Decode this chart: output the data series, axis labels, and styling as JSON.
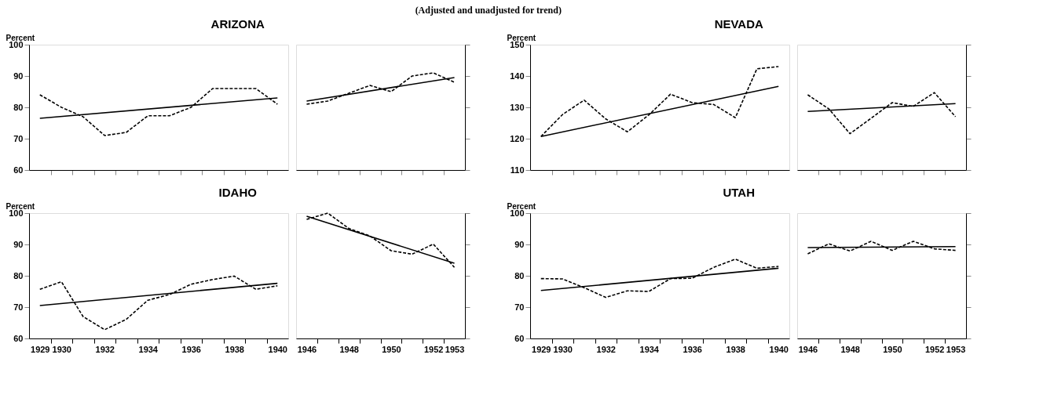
{
  "chart_data": [
    {
      "type": "line",
      "title": "ARIZONA",
      "ylabel": "Percent",
      "annotations": [
        "(Adjusted and unadjusted for trend)"
      ],
      "x": [
        1929,
        1930,
        1931,
        1932,
        1933,
        1934,
        1935,
        1936,
        1937,
        1938,
        1939,
        1940
      ],
      "xlim": [
        1928.5,
        1940.5
      ],
      "xticks": [
        {
          "value": 1929.5,
          "label": null
        },
        {
          "value": 1930.5,
          "label": null
        },
        {
          "value": 1931.5,
          "label": null
        },
        {
          "value": 1932.5,
          "label": null
        },
        {
          "value": 1933.5,
          "label": null
        },
        {
          "value": 1934.5,
          "label": null
        },
        {
          "value": 1935.5,
          "label": null
        },
        {
          "value": 1936.5,
          "label": null
        },
        {
          "value": 1937.5,
          "label": null
        },
        {
          "value": 1938.5,
          "label": null
        },
        {
          "value": 1939.5,
          "label": null
        }
      ],
      "ylim": [
        60,
        100
      ],
      "yticks": [
        60,
        70,
        80,
        90,
        100
      ],
      "tick_labels": "y",
      "series": [
        {
          "color": "#000000",
          "line_style": "dashed",
          "values": [
            84,
            80,
            77,
            71,
            72,
            77.3,
            77.3,
            80,
            86,
            86,
            86,
            81
          ]
        },
        {
          "color": "#000000",
          "line_style": "solid",
          "x": [
            1929,
            1940
          ],
          "values": [
            76.5,
            83
          ]
        }
      ]
    },
    {
      "type": "line",
      "x": [
        1946,
        1947,
        1948,
        1949,
        1950,
        1951,
        1952,
        1953
      ],
      "xlim": [
        1945.5,
        1953.5
      ],
      "xticks": [
        {
          "value": 1946.5,
          "label": null
        },
        {
          "value": 1947.5,
          "label": null
        },
        {
          "value": 1948.5,
          "label": null
        },
        {
          "value": 1949.5,
          "label": null
        },
        {
          "value": 1950.5,
          "label": null
        },
        {
          "value": 1951.5,
          "label": null
        },
        {
          "value": 1952.5,
          "label": null
        }
      ],
      "y2lim": [
        60,
        100
      ],
      "y2ticks": [
        60,
        70,
        80,
        90,
        100
      ],
      "tick_labels": false,
      "series": [
        {
          "color": "#000000",
          "line_style": "dashed",
          "axis": "y2",
          "values": [
            81,
            82,
            84.5,
            87,
            85,
            90,
            91,
            88
          ]
        },
        {
          "color": "#000000",
          "line_style": "solid",
          "axis": "y2",
          "x": [
            1946,
            1953
          ],
          "values": [
            82,
            89.5
          ]
        }
      ]
    },
    {
      "type": "line",
      "title": "NEVADA",
      "ylabel": "Percent",
      "x": [
        1929,
        1930,
        1931,
        1932,
        1933,
        1934,
        1935,
        1936,
        1937,
        1938,
        1939,
        1940
      ],
      "xlim": [
        1928.5,
        1940.5
      ],
      "xticks": [
        {
          "value": 1929.5,
          "label": null
        },
        {
          "value": 1930.5,
          "label": null
        },
        {
          "value": 1931.5,
          "label": null
        },
        {
          "value": 1932.5,
          "label": null
        },
        {
          "value": 1933.5,
          "label": null
        },
        {
          "value": 1934.5,
          "label": null
        },
        {
          "value": 1935.5,
          "label": null
        },
        {
          "value": 1936.5,
          "label": null
        },
        {
          "value": 1937.5,
          "label": null
        },
        {
          "value": 1938.5,
          "label": null
        },
        {
          "value": 1939.5,
          "label": null
        }
      ],
      "ylim": [
        110,
        150
      ],
      "yticks": [
        110,
        120,
        130,
        140,
        150
      ],
      "tick_labels": "y",
      "series": [
        {
          "color": "#000000",
          "line_style": "dashed",
          "values": [
            120.7,
            127.7,
            132.3,
            126.3,
            122.2,
            127.6,
            134.2,
            131.5,
            130.9,
            126.7,
            142.3,
            143
          ]
        },
        {
          "color": "#000000",
          "line_style": "solid",
          "x": [
            1929,
            1940
          ],
          "values": [
            120.7,
            136.7
          ]
        }
      ]
    },
    {
      "type": "line",
      "x": [
        1946,
        1947,
        1948,
        1949,
        1950,
        1951,
        1952,
        1953
      ],
      "xlim": [
        1945.5,
        1953.5
      ],
      "xticks": [
        {
          "value": 1946.5,
          "label": null
        },
        {
          "value": 1947.5,
          "label": null
        },
        {
          "value": 1948.5,
          "label": null
        },
        {
          "value": 1949.5,
          "label": null
        },
        {
          "value": 1950.5,
          "label": null
        },
        {
          "value": 1951.5,
          "label": null
        },
        {
          "value": 1952.5,
          "label": null
        }
      ],
      "y2lim": [
        110,
        150
      ],
      "y2ticks": [
        110,
        120,
        130,
        140,
        150
      ],
      "tick_labels": false,
      "series": [
        {
          "color": "#000000",
          "line_style": "dashed",
          "axis": "y2",
          "values": [
            134,
            129.5,
            121.6,
            126.5,
            131.5,
            130.3,
            134.7,
            127
          ]
        },
        {
          "color": "#000000",
          "line_style": "solid",
          "axis": "y2",
          "x": [
            1946,
            1953
          ],
          "values": [
            128.7,
            131.2
          ]
        }
      ]
    },
    {
      "type": "line",
      "title": "IDAHO",
      "ylabel": "Percent",
      "x": [
        1929,
        1930,
        1931,
        1932,
        1933,
        1934,
        1935,
        1936,
        1937,
        1938,
        1939,
        1940
      ],
      "xlim": [
        1928.5,
        1940.5
      ],
      "xticks": [
        1929,
        1930,
        {
          "value": 1929.5,
          "label": null
        },
        {
          "value": 1930.5,
          "label": null
        },
        {
          "value": 1931.5,
          "label": null
        },
        1932,
        {
          "value": 1932.5,
          "label": null
        },
        {
          "value": 1933.5,
          "label": null
        },
        1934,
        {
          "value": 1934.5,
          "label": null
        },
        {
          "value": 1935.5,
          "label": null
        },
        1936,
        {
          "value": 1936.5,
          "label": null
        },
        {
          "value": 1937.5,
          "label": null
        },
        1938,
        {
          "value": 1938.5,
          "label": null
        },
        {
          "value": 1939.5,
          "label": null
        },
        1940
      ],
      "ylim": [
        60,
        100
      ],
      "yticks": [
        60,
        70,
        80,
        90,
        100
      ],
      "series": [
        {
          "color": "#000000",
          "line_style": "dashed",
          "values": [
            75.7,
            78.1,
            67,
            62.8,
            66.1,
            72.2,
            74,
            77.3,
            78.8,
            79.9,
            75.7,
            76.8
          ]
        },
        {
          "color": "#000000",
          "line_style": "solid",
          "x": [
            1929,
            1940
          ],
          "values": [
            70.5,
            77.6
          ]
        }
      ]
    },
    {
      "type": "line",
      "x": [
        1946,
        1947,
        1948,
        1949,
        1950,
        1951,
        1952,
        1953
      ],
      "xlim": [
        1945.5,
        1953.5
      ],
      "xticks": [
        1946,
        {
          "value": 1946.5,
          "label": null
        },
        {
          "value": 1947.5,
          "label": null
        },
        1948,
        {
          "value": 1948.5,
          "label": null
        },
        {
          "value": 1949.5,
          "label": null
        },
        1950,
        {
          "value": 1950.5,
          "label": null
        },
        {
          "value": 1951.5,
          "label": null
        },
        1952,
        {
          "value": 1952.5,
          "label": null
        },
        1953
      ],
      "y2lim": [
        60,
        100
      ],
      "y2ticks": [
        60,
        70,
        80,
        90,
        100
      ],
      "tick_labels": "x",
      "series": [
        {
          "color": "#000000",
          "line_style": "dashed",
          "axis": "y2",
          "values": [
            98,
            100,
            95.1,
            92.7,
            88,
            86.9,
            90.1,
            82.7
          ]
        },
        {
          "color": "#000000",
          "line_style": "solid",
          "axis": "y2",
          "x": [
            1946,
            1953
          ],
          "values": [
            99,
            84
          ]
        }
      ]
    },
    {
      "type": "line",
      "title": "UTAH",
      "ylabel": "Percent",
      "x": [
        1929,
        1930,
        1931,
        1932,
        1933,
        1934,
        1935,
        1936,
        1937,
        1938,
        1939,
        1940
      ],
      "xlim": [
        1928.5,
        1940.5
      ],
      "xticks": [
        1929,
        1930,
        {
          "value": 1929.5,
          "label": null
        },
        {
          "value": 1930.5,
          "label": null
        },
        {
          "value": 1931.5,
          "label": null
        },
        1932,
        {
          "value": 1932.5,
          "label": null
        },
        {
          "value": 1933.5,
          "label": null
        },
        1934,
        {
          "value": 1934.5,
          "label": null
        },
        {
          "value": 1935.5,
          "label": null
        },
        1936,
        {
          "value": 1936.5,
          "label": null
        },
        {
          "value": 1937.5,
          "label": null
        },
        1938,
        {
          "value": 1938.5,
          "label": null
        },
        {
          "value": 1939.5,
          "label": null
        },
        1940
      ],
      "ylim": [
        60,
        100
      ],
      "yticks": [
        60,
        70,
        80,
        90,
        100
      ],
      "series": [
        {
          "color": "#000000",
          "line_style": "dashed",
          "values": [
            79.1,
            79,
            76.2,
            73.1,
            75.2,
            75,
            79.1,
            79.2,
            82.7,
            85.3,
            82.4,
            83
          ]
        },
        {
          "color": "#000000",
          "line_style": "solid",
          "x": [
            1929,
            1940
          ],
          "values": [
            75.3,
            82.4
          ]
        }
      ]
    },
    {
      "type": "line",
      "x": [
        1946,
        1947,
        1948,
        1949,
        1950,
        1951,
        1952,
        1953
      ],
      "xlim": [
        1945.5,
        1953.5
      ],
      "xticks": [
        1946,
        {
          "value": 1946.5,
          "label": null
        },
        {
          "value": 1947.5,
          "label": null
        },
        1948,
        {
          "value": 1948.5,
          "label": null
        },
        {
          "value": 1949.5,
          "label": null
        },
        1950,
        {
          "value": 1950.5,
          "label": null
        },
        {
          "value": 1951.5,
          "label": null
        },
        1952,
        {
          "value": 1952.5,
          "label": null
        },
        1953
      ],
      "y2lim": [
        60,
        100
      ],
      "y2ticks": [
        60,
        70,
        80,
        90,
        100
      ],
      "tick_labels": "x",
      "series": [
        {
          "color": "#000000",
          "line_style": "dashed",
          "axis": "y2",
          "values": [
            87,
            90.2,
            87.9,
            91,
            88.1,
            91,
            88.6,
            88.1
          ]
        },
        {
          "color": "#000000",
          "line_style": "solid",
          "axis": "y2",
          "x": [
            1946,
            1953
          ],
          "values": [
            89,
            89.3
          ]
        }
      ]
    }
  ]
}
